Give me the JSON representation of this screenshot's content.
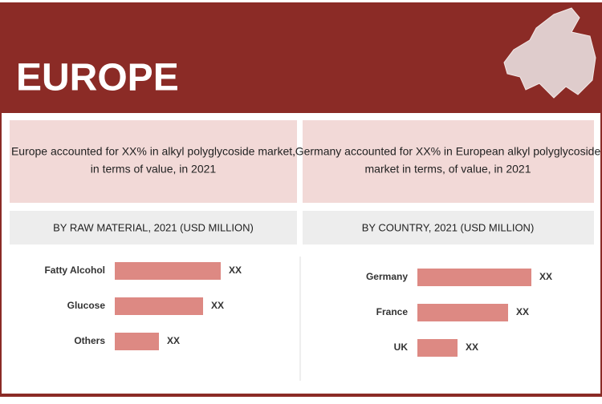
{
  "header": {
    "title": "EUROPE"
  },
  "summaries": [
    {
      "lines": [
        "Europe accounted for XX% in alkyl polyglycoside market,",
        "in terms of value, in 2021"
      ]
    },
    {
      "lines": [
        "Germany accounted for XX% in European alkyl polyglycoside",
        "market  in terms, of value, in 2021"
      ]
    }
  ],
  "chart_data": [
    {
      "type": "bar",
      "orientation": "horizontal",
      "title": "BY  RAW MATERIAL, 2021 (USD MILLION)",
      "categories": [
        "Fatty Alcohol",
        "Glucose",
        "Others"
      ],
      "values": [
        132,
        110,
        55
      ],
      "value_labels": [
        "XX",
        "XX",
        "XX"
      ],
      "color": "#dd8983",
      "xlim": [
        0,
        150
      ]
    },
    {
      "type": "bar",
      "orientation": "horizontal",
      "title": "BY COUNTRY, 2021 (USD MILLION)",
      "categories": [
        "Germany",
        "France",
        "UK"
      ],
      "values": [
        142,
        113,
        50
      ],
      "value_labels": [
        "XX",
        "XX",
        "XX"
      ],
      "color": "#dd8983",
      "xlim": [
        0,
        150
      ]
    }
  ]
}
